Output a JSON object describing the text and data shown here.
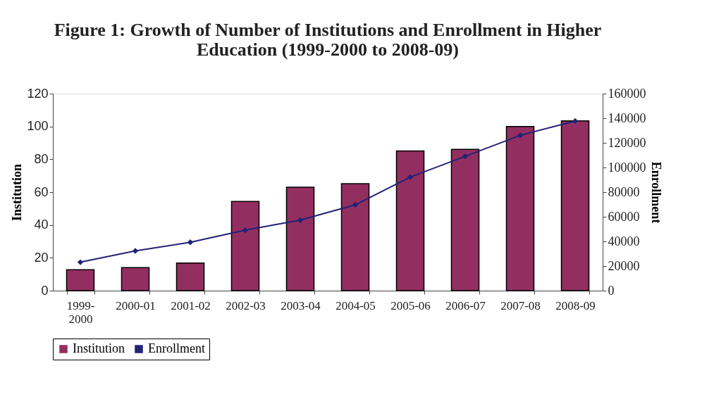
{
  "chart_data": {
    "type": "bar",
    "title": "Figure 1: Growth of Number of Institutions and Enrollment in Higher Education (1999-2000 to 2008-09)",
    "categories": [
      "1999-\n2000",
      "2000-01",
      "2001-02",
      "2002-03",
      "2003-04",
      "2004-05",
      "2005-06",
      "2006-07",
      "2007-08",
      "2008-09"
    ],
    "series": [
      {
        "name": "Institution",
        "color": "#932f60",
        "values": [
          12.7,
          14,
          16.8,
          54.3,
          63,
          65.1,
          85.1,
          86,
          100,
          103.4
        ]
      },
      {
        "name": "Enrollment",
        "type": "line",
        "axis": "y2",
        "color": "#222277",
        "marker": "diamond",
        "values": [
          23100,
          32300,
          39300,
          49100,
          57300,
          69700,
          92200,
          109100,
          126100,
          137700
        ]
      }
    ],
    "ylabel": "Institution",
    "y2label": "Enrollment",
    "ylim": [
      0,
      120
    ],
    "yticks": [
      0,
      20,
      40,
      60,
      80,
      100,
      120
    ],
    "y2lim": [
      0,
      160000
    ],
    "y2ticks": [
      0,
      20000,
      40000,
      60000,
      80000,
      100000,
      120000,
      140000,
      160000
    ],
    "grid": false,
    "legend": "bottom"
  }
}
